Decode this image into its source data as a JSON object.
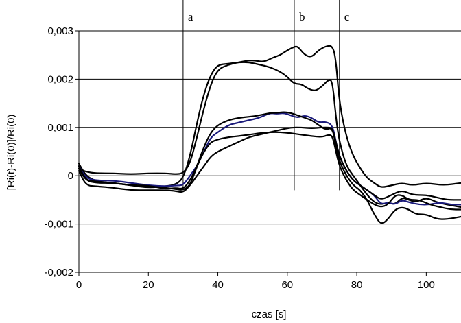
{
  "chart_data": {
    "type": "line",
    "xlabel": "czas [s]",
    "ylabel": "[Ri(t)-Ri(0)]/Ri(0)",
    "xlim": [
      0,
      110
    ],
    "ylim": [
      -0.002,
      0.003
    ],
    "x_ticks": [
      0,
      20,
      40,
      60,
      80,
      100
    ],
    "x_tick_labels": [
      "0",
      "20",
      "40",
      "60",
      "80",
      "100"
    ],
    "y_ticks": [
      -0.002,
      -0.001,
      0,
      0.001,
      0.002,
      0.003
    ],
    "y_tick_labels": [
      "-0,002",
      "-0,001",
      "0",
      "0,001",
      "0,002",
      "0,003"
    ],
    "grid": "horizontal",
    "markers": [
      {
        "label": "a",
        "x": 30
      },
      {
        "label": "b",
        "x": 62
      },
      {
        "label": "c",
        "x": 75
      }
    ],
    "series": [
      {
        "color": "#000000",
        "points": [
          [
            0,
            0.00015
          ],
          [
            2,
            8e-05
          ],
          [
            5,
            5e-05
          ],
          [
            10,
            5e-05
          ],
          [
            15,
            3e-05
          ],
          [
            20,
            5e-05
          ],
          [
            25,
            5e-05
          ],
          [
            28,
            3e-05
          ],
          [
            30,
            5e-05
          ],
          [
            32,
            0.00025
          ],
          [
            34,
            0.0008
          ],
          [
            36,
            0.0014
          ],
          [
            38,
            0.0019
          ],
          [
            40,
            0.0022
          ],
          [
            43,
            0.0023
          ],
          [
            46,
            0.00235
          ],
          [
            50,
            0.0024
          ],
          [
            53,
            0.00235
          ],
          [
            56,
            0.00245
          ],
          [
            58,
            0.0025
          ],
          [
            60,
            0.0026
          ],
          [
            62,
            0.00267
          ],
          [
            63,
            0.00268
          ],
          [
            65,
            0.0025
          ],
          [
            67,
            0.00245
          ],
          [
            69,
            0.0026
          ],
          [
            71,
            0.00268
          ],
          [
            73,
            0.0027
          ],
          [
            74,
            0.0024
          ],
          [
            75,
            0.0015
          ],
          [
            77,
            0.0008
          ],
          [
            79,
            0.0004
          ],
          [
            81,
            0.00015
          ],
          [
            83,
            -5e-05
          ],
          [
            85,
            -0.00015
          ],
          [
            87,
            -0.00025
          ],
          [
            90,
            -0.0002
          ],
          [
            93,
            -0.00015
          ],
          [
            96,
            -0.0002
          ],
          [
            100,
            -0.00015
          ],
          [
            105,
            -0.0002
          ],
          [
            110,
            -0.00015
          ]
        ]
      },
      {
        "color": "#000000",
        "points": [
          [
            0,
            0.00025
          ],
          [
            2,
            0.0
          ],
          [
            5,
            -0.00012
          ],
          [
            10,
            -0.00015
          ],
          [
            15,
            -0.0002
          ],
          [
            20,
            -0.00025
          ],
          [
            25,
            -0.00022
          ],
          [
            28,
            -0.00018
          ],
          [
            30,
            -5e-05
          ],
          [
            32,
            0.0004
          ],
          [
            34,
            0.0011
          ],
          [
            36,
            0.0017
          ],
          [
            38,
            0.0021
          ],
          [
            40,
            0.0023
          ],
          [
            43,
            0.00232
          ],
          [
            46,
            0.00235
          ],
          [
            49,
            0.00235
          ],
          [
            52,
            0.0023
          ],
          [
            55,
            0.00225
          ],
          [
            58,
            0.00215
          ],
          [
            60,
            0.00205
          ],
          [
            62,
            0.0019
          ],
          [
            64,
            0.0019
          ],
          [
            66,
            0.0018
          ],
          [
            68,
            0.00175
          ],
          [
            70,
            0.00185
          ],
          [
            72,
            0.002
          ],
          [
            73,
            0.00195
          ],
          [
            74,
            0.0012
          ],
          [
            75,
            0.0007
          ],
          [
            77,
            0.0002
          ],
          [
            79,
            0.0
          ],
          [
            81,
            -0.0002
          ],
          [
            83,
            -0.0004
          ],
          [
            85,
            -0.00055
          ],
          [
            87,
            -0.0006
          ],
          [
            89,
            -0.00055
          ],
          [
            91,
            -0.0006
          ],
          [
            93,
            -0.00045
          ],
          [
            95,
            -0.0005
          ],
          [
            97,
            -0.00055
          ],
          [
            100,
            -0.00045
          ],
          [
            103,
            -0.00055
          ],
          [
            106,
            -0.0006
          ],
          [
            110,
            -0.00065
          ]
        ]
      },
      {
        "color": "#1a1a7a",
        "points": [
          [
            0,
            0.0002
          ],
          [
            2,
            -5e-05
          ],
          [
            5,
            -0.0001
          ],
          [
            10,
            -0.0001
          ],
          [
            15,
            -0.00015
          ],
          [
            20,
            -0.0002
          ],
          [
            25,
            -0.00022
          ],
          [
            28,
            -0.0002
          ],
          [
            30,
            -0.0002
          ],
          [
            32,
            0.0
          ],
          [
            34,
            0.0002
          ],
          [
            36,
            0.0005
          ],
          [
            38,
            0.0008
          ],
          [
            40,
            0.0009
          ],
          [
            43,
            0.00105
          ],
          [
            46,
            0.0011
          ],
          [
            49,
            0.00115
          ],
          [
            52,
            0.0012
          ],
          [
            55,
            0.0013
          ],
          [
            57,
            0.00128
          ],
          [
            59,
            0.0013
          ],
          [
            61,
            0.00125
          ],
          [
            63,
            0.0012
          ],
          [
            65,
            0.00125
          ],
          [
            67,
            0.0012
          ],
          [
            69,
            0.0011
          ],
          [
            71,
            0.00112
          ],
          [
            73,
            0.00105
          ],
          [
            74,
            0.0007
          ],
          [
            75,
            0.0004
          ],
          [
            77,
            0.0001
          ],
          [
            79,
            -0.0001
          ],
          [
            81,
            -0.0002
          ],
          [
            83,
            -0.0003
          ],
          [
            85,
            -0.0004
          ],
          [
            87,
            -0.0006
          ],
          [
            89,
            -0.00055
          ],
          [
            91,
            -0.0006
          ],
          [
            93,
            -0.0005
          ],
          [
            95,
            -0.00055
          ],
          [
            98,
            -0.0006
          ],
          [
            101,
            -0.0006
          ],
          [
            104,
            -0.00055
          ],
          [
            107,
            -0.0006
          ],
          [
            110,
            -0.0006
          ]
        ]
      },
      {
        "color": "#000000",
        "points": [
          [
            0,
            0.00015
          ],
          [
            2,
            -0.0001
          ],
          [
            5,
            -0.00015
          ],
          [
            10,
            -0.00015
          ],
          [
            15,
            -0.0002
          ],
          [
            20,
            -0.0002
          ],
          [
            25,
            -0.00028
          ],
          [
            28,
            -0.00025
          ],
          [
            30,
            -0.00028
          ],
          [
            32,
            -0.0001
          ],
          [
            34,
            0.0002
          ],
          [
            36,
            0.0006
          ],
          [
            38,
            0.0009
          ],
          [
            40,
            0.00105
          ],
          [
            43,
            0.00115
          ],
          [
            46,
            0.0012
          ],
          [
            49,
            0.00122
          ],
          [
            52,
            0.00125
          ],
          [
            55,
            0.0013
          ],
          [
            57,
            0.0013
          ],
          [
            59,
            0.00132
          ],
          [
            61,
            0.0013
          ],
          [
            63,
            0.00125
          ],
          [
            65,
            0.0012
          ],
          [
            67,
            0.00115
          ],
          [
            69,
            0.00105
          ],
          [
            71,
            0.00095
          ],
          [
            73,
            0.001
          ],
          [
            74,
            0.0006
          ],
          [
            75,
            0.0003
          ],
          [
            77,
            0.0
          ],
          [
            79,
            -0.0002
          ],
          [
            81,
            -0.0003
          ],
          [
            83,
            -0.0005
          ],
          [
            85,
            -0.0008
          ],
          [
            87,
            -0.00102
          ],
          [
            89,
            -0.0009
          ],
          [
            91,
            -0.0007
          ],
          [
            93,
            -0.00065
          ],
          [
            95,
            -0.0007
          ],
          [
            97,
            -0.0008
          ],
          [
            100,
            -0.0008
          ],
          [
            103,
            -0.0009
          ],
          [
            106,
            -0.0009
          ],
          [
            110,
            -0.00085
          ]
        ]
      },
      {
        "color": "#000000",
        "points": [
          [
            0,
            0.0001
          ],
          [
            2,
            -0.0002
          ],
          [
            5,
            -0.00022
          ],
          [
            10,
            -0.00025
          ],
          [
            15,
            -0.0003
          ],
          [
            20,
            -0.0003
          ],
          [
            25,
            -0.0003
          ],
          [
            28,
            -0.00032
          ],
          [
            30,
            -0.00035
          ],
          [
            32,
            -0.0002
          ],
          [
            34,
            0.0
          ],
          [
            36,
            0.0002
          ],
          [
            38,
            0.0004
          ],
          [
            40,
            0.0005
          ],
          [
            43,
            0.0006
          ],
          [
            46,
            0.0007
          ],
          [
            49,
            0.0008
          ],
          [
            52,
            0.00085
          ],
          [
            55,
            0.0009
          ],
          [
            58,
            0.00095
          ],
          [
            61,
            0.001
          ],
          [
            64,
            0.001
          ],
          [
            67,
            0.00098
          ],
          [
            70,
            0.001
          ],
          [
            72,
            0.001
          ],
          [
            73,
            0.00098
          ],
          [
            74,
            0.0007
          ],
          [
            75,
            0.0004
          ],
          [
            77,
            0.0001
          ],
          [
            79,
            -0.0001
          ],
          [
            81,
            -0.0002
          ],
          [
            83,
            -0.0003
          ],
          [
            85,
            -0.0004
          ],
          [
            87,
            -0.0005
          ],
          [
            90,
            -0.0004
          ],
          [
            93,
            -0.0003
          ],
          [
            96,
            -0.0004
          ],
          [
            100,
            -0.0004
          ],
          [
            103,
            -0.00045
          ],
          [
            106,
            -0.0005
          ],
          [
            110,
            -0.0005
          ]
        ]
      },
      {
        "color": "#000000",
        "points": [
          [
            0,
            0.0002
          ],
          [
            2,
            -0.0001
          ],
          [
            5,
            -0.00012
          ],
          [
            10,
            -0.00015
          ],
          [
            15,
            -0.0002
          ],
          [
            20,
            -0.00022
          ],
          [
            25,
            -0.00025
          ],
          [
            28,
            -0.00028
          ],
          [
            30,
            -0.0003
          ],
          [
            32,
            -0.0002
          ],
          [
            34,
            0.0002
          ],
          [
            36,
            0.0005
          ],
          [
            38,
            0.0007
          ],
          [
            40,
            0.00075
          ],
          [
            43,
            0.0008
          ],
          [
            46,
            0.00082
          ],
          [
            49,
            0.00085
          ],
          [
            52,
            0.00088
          ],
          [
            55,
            0.0009
          ],
          [
            58,
            0.0009
          ],
          [
            61,
            0.00088
          ],
          [
            64,
            0.00085
          ],
          [
            67,
            0.00082
          ],
          [
            70,
            0.0008
          ],
          [
            72,
            0.00085
          ],
          [
            73,
            0.00082
          ],
          [
            74,
            0.0005
          ],
          [
            75,
            0.0002
          ],
          [
            77,
            -0.0001
          ],
          [
            79,
            -0.0003
          ],
          [
            81,
            -0.0004
          ],
          [
            83,
            -0.0005
          ],
          [
            85,
            -0.0006
          ],
          [
            87,
            -0.00065
          ],
          [
            89,
            -0.0006
          ],
          [
            91,
            -0.0004
          ],
          [
            93,
            -0.0004
          ],
          [
            95,
            -0.0005
          ],
          [
            98,
            -0.0005
          ],
          [
            101,
            -0.0006
          ],
          [
            104,
            -0.00065
          ],
          [
            107,
            -0.0007
          ],
          [
            110,
            -0.0007
          ]
        ]
      }
    ]
  }
}
